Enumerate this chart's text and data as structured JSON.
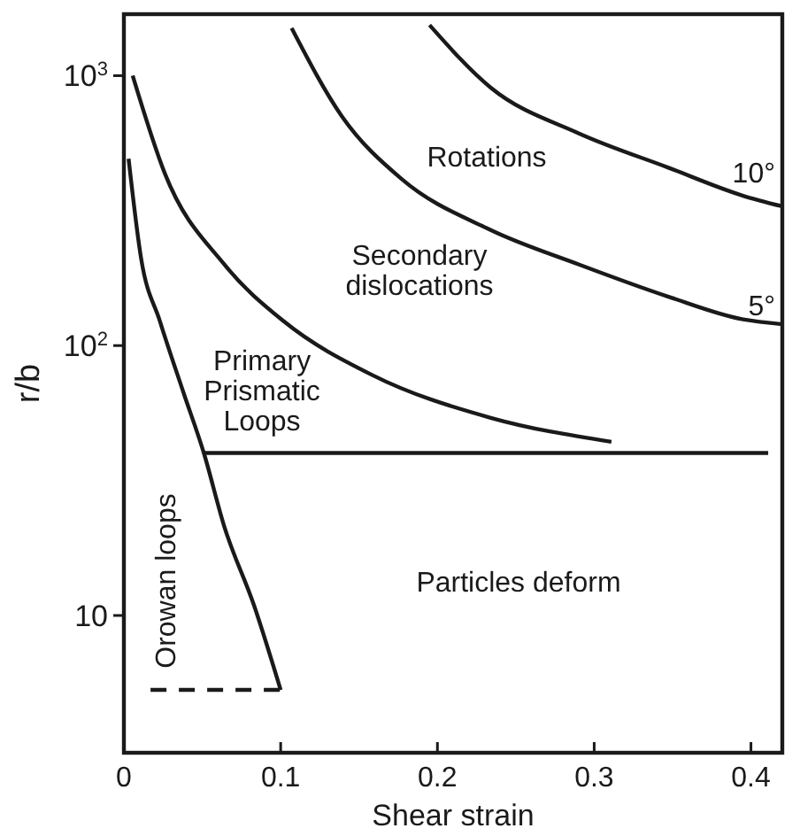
{
  "chart_data": {
    "type": "line",
    "xlabel": "Shear strain",
    "ylabel": "r/b",
    "log": "y",
    "grid": false,
    "marker": "none",
    "xlim": [
      0,
      0.42
    ],
    "xticks": [
      0,
      0.1,
      0.2,
      0.3,
      0.4
    ],
    "ylim": [
      3.1,
      1690
    ],
    "yticks": [
      10,
      {
        "value": 100,
        "label": "10$^{2}$"
      },
      {
        "value": 1000,
        "label": "10$^{3}$"
      }
    ],
    "series": [
      {
        "color": "#1a1a1a",
        "line_style": "solid",
        "x": [
          0.195,
          0.234,
          0.29,
          0.347,
          0.395,
          0.42
        ],
        "values": [
          1540,
          903,
          612,
          457,
          359,
          328
        ]
      },
      {
        "color": "#1a1a1a",
        "line_style": "solid",
        "x": [
          0.107,
          0.139,
          0.177,
          0.234,
          0.29,
          0.347,
          0.395,
          0.42
        ],
        "values": [
          1500,
          708,
          415,
          268,
          200,
          152,
          125,
          120
        ]
      },
      {
        "color": "#1a1a1a",
        "line_style": "solid",
        "x": [
          0.0056,
          0.026,
          0.064,
          0.102,
          0.158,
          0.234,
          0.311
        ],
        "values": [
          1000,
          436,
          200,
          123,
          78,
          54,
          44
        ]
      },
      {
        "color": "#1a1a1a",
        "line_style": "solid",
        "x": [
          0.051,
          0.411
        ],
        "values": [
          40,
          40
        ]
      },
      {
        "color": "#1a1a1a",
        "line_style": "solid",
        "x": [
          0.003,
          0.011,
          0.023,
          0.038,
          0.051,
          0.064,
          0.083,
          0.1
        ],
        "values": [
          492,
          210,
          123,
          67,
          40,
          21.4,
          10.9,
          5.3
        ]
      },
      {
        "color": "#1a1a1a",
        "line_style": "dashed",
        "x": [
          0.017,
          0.1
        ],
        "values": [
          5.3,
          5.3
        ]
      }
    ],
    "annotations": [
      "Rotations",
      "Secondary\ndislocations",
      "Primary\nPrismatic\nLoops",
      "Particles deform",
      "Orowan loops",
      "10°",
      "5°"
    ]
  }
}
